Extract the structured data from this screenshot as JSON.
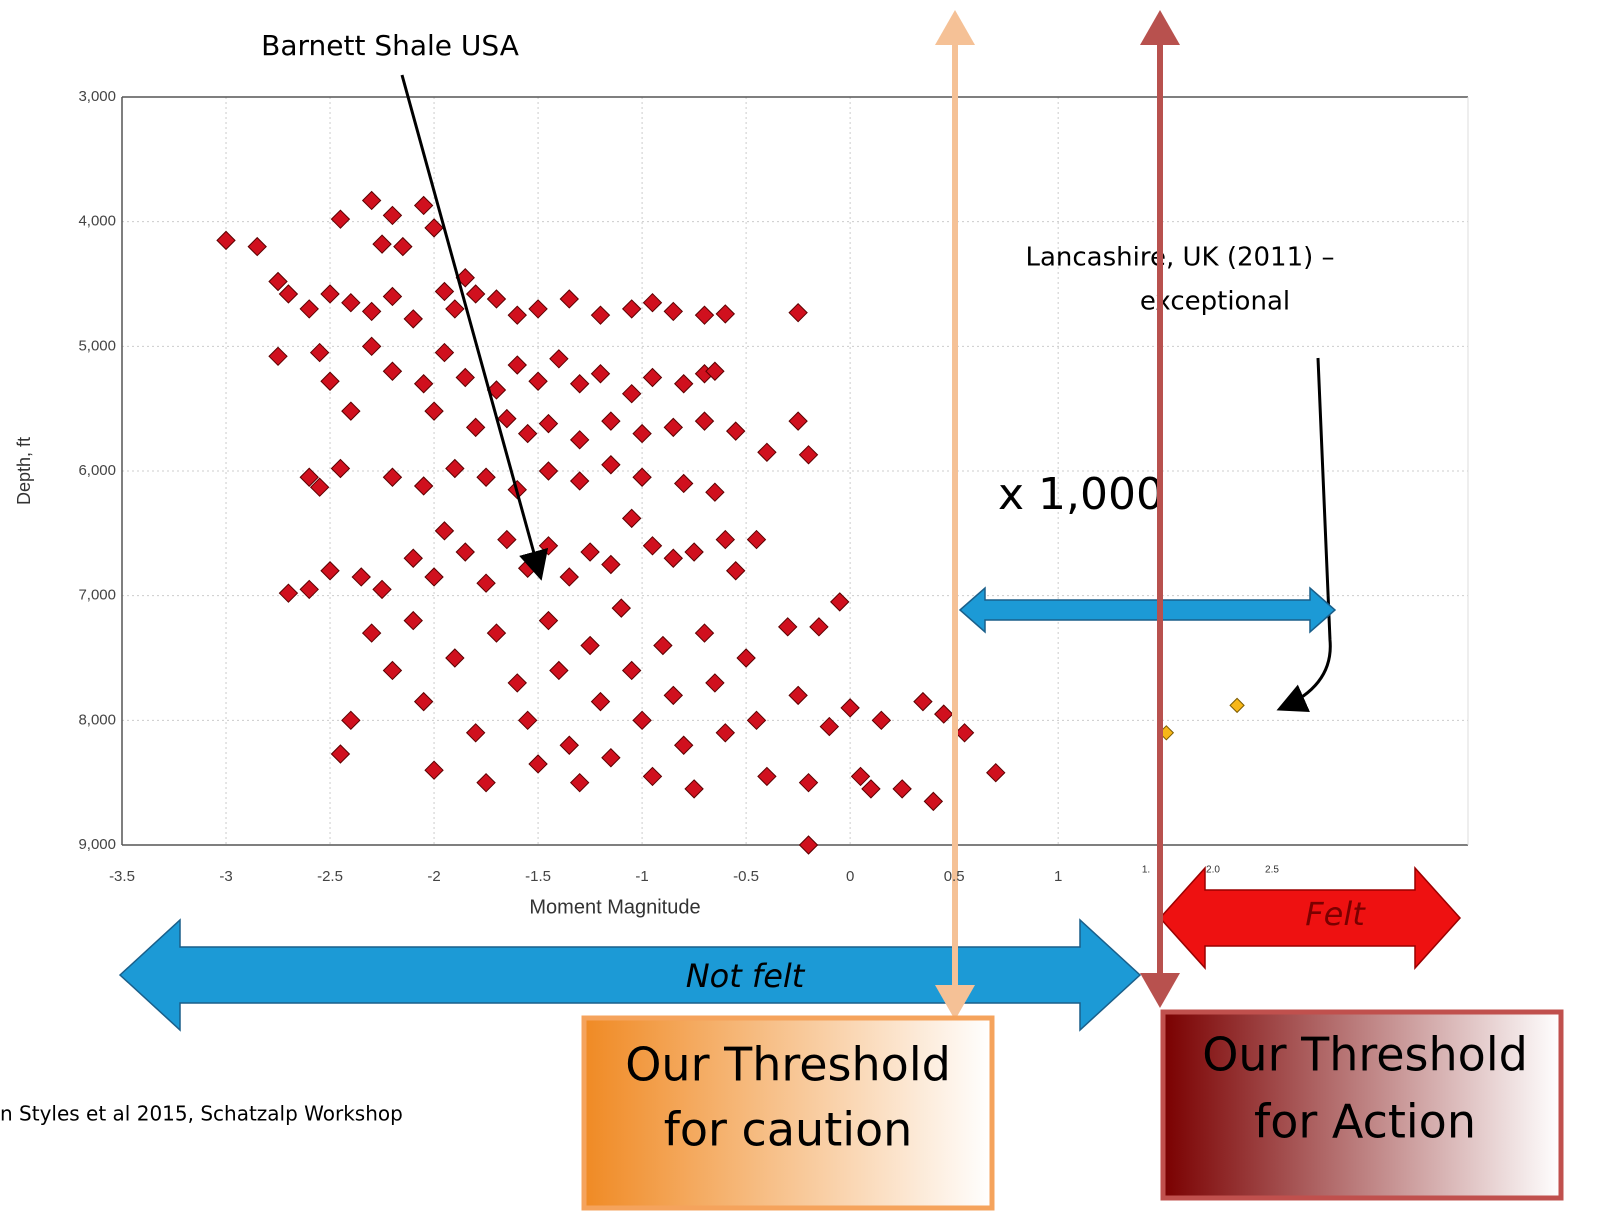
{
  "chart_data": {
    "type": "scatter",
    "xlabel": "Moment Magnitude",
    "ylabel": "Depth, ft",
    "xlim": [
      -3.5,
      2.97
    ],
    "ylim": [
      9000,
      3000
    ],
    "xticks": [
      -3.5,
      -3.0,
      -2.5,
      -2.0,
      -1.5,
      -1.0,
      -0.5,
      0.0,
      0.5,
      1
    ],
    "yticks": [
      {
        "value": 3000,
        "label": "3,000"
      },
      {
        "value": 4000,
        "label": "4,000"
      },
      {
        "value": 5000,
        "label": "5,000"
      },
      {
        "value": 6000,
        "label": "6,000"
      },
      {
        "value": 7000,
        "label": "7,000"
      },
      {
        "value": 8000,
        "label": "8,000"
      },
      {
        "value": 9000,
        "label": "9,000"
      }
    ],
    "secondary_tick_labels": [
      "1.",
      "2.0",
      "2.5"
    ],
    "grid": true,
    "series": [
      {
        "color": "#d0101e",
        "x": [
          -3.0,
          -2.85,
          -2.75,
          -2.7,
          -2.45,
          -2.3,
          -2.25,
          -2.2,
          -2.15,
          -2.05,
          -2.0,
          -1.85,
          -1.8,
          -2.6,
          -2.5,
          -2.4,
          -2.3,
          -2.2,
          -2.1,
          -1.95,
          -1.9,
          -1.7,
          -1.6,
          -1.5,
          -1.35,
          -1.2,
          -1.05,
          -0.95,
          -0.85,
          -0.7,
          -0.6,
          -0.25,
          -2.75,
          -2.55,
          -2.5,
          -2.3,
          -2.2,
          -2.05,
          -1.95,
          -1.85,
          -1.7,
          -1.6,
          -1.5,
          -1.4,
          -1.3,
          -1.2,
          -1.05,
          -0.95,
          -0.8,
          -0.7,
          -0.65,
          -2.4,
          -2.0,
          -1.8,
          -1.65,
          -1.55,
          -1.45,
          -1.3,
          -1.15,
          -1.0,
          -0.85,
          -0.7,
          -0.55,
          -0.4,
          -0.25,
          -0.2,
          -2.6,
          -2.55,
          -2.45,
          -2.2,
          -2.05,
          -1.9,
          -1.75,
          -1.6,
          -1.45,
          -1.3,
          -1.15,
          -1.0,
          -0.8,
          -0.65,
          -2.7,
          -2.6,
          -2.5,
          -2.35,
          -2.25,
          -2.1,
          -2.0,
          -1.95,
          -1.85,
          -1.75,
          -1.65,
          -1.55,
          -1.45,
          -1.35,
          -1.25,
          -1.15,
          -1.05,
          -0.95,
          -0.85,
          -0.75,
          -0.6,
          -0.45,
          -0.55,
          -2.3,
          -2.1,
          -2.2,
          -2.05,
          -2.4,
          -2.45,
          -2.0,
          -1.9,
          -1.8,
          -1.75,
          -1.7,
          -1.6,
          -1.55,
          -1.5,
          -1.45,
          -1.4,
          -1.35,
          -1.3,
          -1.25,
          -1.2,
          -1.15,
          -1.1,
          -1.05,
          -1.0,
          -0.95,
          -0.9,
          -0.85,
          -0.8,
          -0.75,
          -0.7,
          -0.65,
          -0.6,
          -0.5,
          -0.45,
          -0.4,
          -0.3,
          -0.25,
          -0.2,
          -0.15,
          -0.1,
          0.0,
          0.05,
          0.15,
          0.25,
          0.35,
          0.4,
          0.45,
          0.55,
          0.7,
          -0.2,
          -0.05,
          0.1
        ],
        "values": [
          4150,
          4200,
          4480,
          4580,
          3980,
          3830,
          4180,
          3950,
          4200,
          3870,
          4050,
          4450,
          4580,
          4700,
          4580,
          4650,
          4720,
          4600,
          4780,
          4560,
          4700,
          4620,
          4750,
          4700,
          4620,
          4750,
          4700,
          4650,
          4720,
          4750,
          4740,
          4730,
          5080,
          5050,
          5280,
          5000,
          5200,
          5300,
          5050,
          5250,
          5350,
          5150,
          5280,
          5100,
          5300,
          5220,
          5380,
          5250,
          5300,
          5220,
          5200,
          5520,
          5520,
          5650,
          5580,
          5700,
          5620,
          5750,
          5600,
          5700,
          5650,
          5600,
          5680,
          5850,
          5600,
          5870,
          6050,
          6130,
          5980,
          6050,
          6120,
          5980,
          6050,
          6150,
          6000,
          6080,
          5950,
          6050,
          6100,
          6170,
          6980,
          6950,
          6800,
          6850,
          6950,
          6700,
          6850,
          6480,
          6650,
          6900,
          6550,
          6780,
          6600,
          6850,
          6650,
          6750,
          6380,
          6600,
          6700,
          6650,
          6550,
          6550,
          6800,
          7300,
          7200,
          7600,
          7850,
          8000,
          8270,
          8400,
          7500,
          8100,
          8500,
          7300,
          7700,
          8000,
          8350,
          7200,
          7600,
          8200,
          8500,
          7400,
          7850,
          8300,
          7100,
          7600,
          8000,
          8450,
          7400,
          7800,
          8200,
          8550,
          7300,
          7700,
          8100,
          7500,
          8000,
          8450,
          7250,
          7800,
          8500,
          7250,
          8050,
          7900,
          8450,
          8000,
          8550,
          7850,
          8650,
          7950,
          8100,
          8420,
          9000,
          7050,
          8550
        ]
      },
      {
        "color": "#f7b718",
        "x": [
          1.52,
          1.86
        ],
        "values": [
          8100,
          7880
        ]
      }
    ],
    "annotation_barnett": "Barnett Shale USA",
    "annotation_lancashire": [
      "Lancashire, UK (2011) –",
      "exceptional"
    ],
    "annotation_factor": "x 1,000",
    "label_not_felt": "Not felt",
    "label_felt": "Felt",
    "box_caution": [
      "Our Threshold",
      "for caution"
    ],
    "box_action": [
      "Our Threshold",
      "for Action"
    ],
    "source": "n  Styles et al 2015, Schatzalp Workshop"
  }
}
